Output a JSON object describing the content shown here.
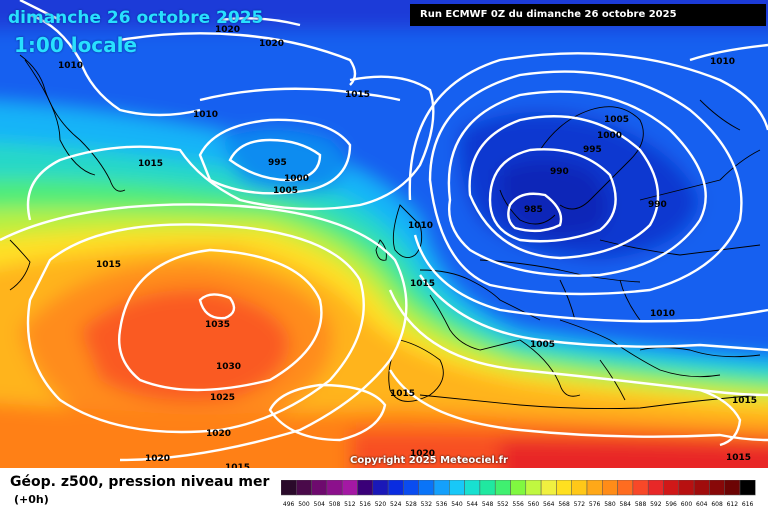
{
  "title_date": "dimanche 26 octobre 2025",
  "title_time": "1:00 locale",
  "run_label": "Run ECMWF 0Z du dimanche 26 octobre 2025",
  "copyright": "Copyright 2025 Meteociel.fr",
  "legend": {
    "title": "Géop. z500, pression niveau mer",
    "subtitle": "(+0h)",
    "scale_values": [
      "496",
      "500",
      "504",
      "508",
      "512",
      "516",
      "520",
      "524",
      "528",
      "532",
      "536",
      "540",
      "544",
      "548",
      "552",
      "556",
      "560",
      "564",
      "568",
      "572",
      "576",
      "580",
      "584",
      "588",
      "592",
      "596",
      "600",
      "604",
      "608",
      "612",
      "616"
    ],
    "scale_colors": [
      "#2a0a2a",
      "#4a0a4a",
      "#6e0a6e",
      "#8c108c",
      "#a418a4",
      "#3a0078",
      "#1a18b8",
      "#0a2ce0",
      "#0a4cf0",
      "#0a74f8",
      "#14a0fc",
      "#18c8f8",
      "#18e0d0",
      "#20e8a0",
      "#40f070",
      "#80f840",
      "#c0f840",
      "#f0f040",
      "#ffe020",
      "#ffc818",
      "#ffa818",
      "#ff8c18",
      "#ff6c20",
      "#f84828",
      "#e82828",
      "#d01818",
      "#b81010",
      "#a00c0c",
      "#880808",
      "#6c0404",
      "#000000"
    ]
  },
  "isobar_labels": [
    {
      "text": "1020",
      "id": "label-1020-top"
    },
    {
      "text": "1020",
      "id": "label-1020-top2"
    },
    {
      "text": "1010",
      "id": "label-1010-nw"
    },
    {
      "text": "1010",
      "id": "label-1010-ne"
    },
    {
      "text": "1015",
      "id": "label-1015-n"
    },
    {
      "text": "1010",
      "id": "label-1010-iceland"
    },
    {
      "text": "1005",
      "id": "label-1005-scand"
    },
    {
      "text": "1000",
      "id": "label-1000-scand"
    },
    {
      "text": "995",
      "id": "label-995-scand"
    },
    {
      "text": "995",
      "id": "label-995-iceland"
    },
    {
      "text": "1000",
      "id": "label-1000-iceland"
    },
    {
      "text": "1005",
      "id": "label-1005-iceland"
    },
    {
      "text": "1015",
      "id": "label-1015-greenland"
    },
    {
      "text": "990",
      "id": "label-990-scand"
    },
    {
      "text": "990",
      "id": "label-990-east"
    },
    {
      "text": "985",
      "id": "label-985-low"
    },
    {
      "text": "1010",
      "id": "label-1010-uk"
    },
    {
      "text": "1015",
      "id": "label-1015-west"
    },
    {
      "text": "1015",
      "id": "label-1015-france"
    },
    {
      "text": "1010",
      "id": "label-1010-east"
    },
    {
      "text": "1035",
      "id": "label-1035-high"
    },
    {
      "text": "1005",
      "id": "label-1005-italy"
    },
    {
      "text": "1030",
      "id": "label-1030"
    },
    {
      "text": "1025",
      "id": "label-1025"
    },
    {
      "text": "1015",
      "id": "label-1015-iberia"
    },
    {
      "text": "1020",
      "id": "label-1020-sw"
    },
    {
      "text": "1015",
      "id": "label-1015-se"
    },
    {
      "text": "1020",
      "id": "label-1020-bottom"
    },
    {
      "text": "1020",
      "id": "label-1020-africa"
    },
    {
      "text": "1015",
      "id": "label-1015-bottom"
    },
    {
      "text": "1015",
      "id": "label-1015-bottom-right"
    }
  ]
}
